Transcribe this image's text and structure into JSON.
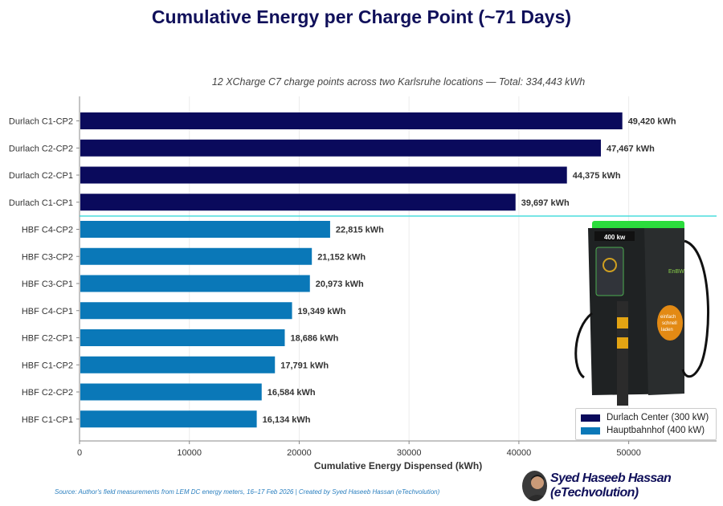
{
  "chart_data": {
    "type": "bar",
    "orientation": "horizontal",
    "title": "Cumulative Energy per Charge Point (~71 Days)",
    "subtitle": "12 XCharge C7 charge points across two Karlsruhe locations — Total: 334,443 kWh",
    "xlabel": "Cumulative Energy Dispensed (kWh)",
    "ylabel": "",
    "xlim": [
      0,
      58000
    ],
    "xticks": [
      0,
      10000,
      20000,
      30000,
      40000,
      50000
    ],
    "grid": true,
    "legend_position": "bottom-right",
    "categories": [
      "Durlach C1-CP2",
      "Durlach C2-CP2",
      "Durlach C2-CP1",
      "Durlach C1-CP1",
      "HBF C4-CP2",
      "HBF C3-CP2",
      "HBF C3-CP1",
      "HBF C4-CP1",
      "HBF C2-CP1",
      "HBF C1-CP2",
      "HBF C2-CP2",
      "HBF C1-CP1"
    ],
    "values": [
      49420,
      47467,
      44375,
      39697,
      22815,
      21152,
      20973,
      19349,
      18686,
      17791,
      16584,
      16134
    ],
    "value_labels": [
      "49,420 kWh",
      "47,467 kWh",
      "44,375 kWh",
      "39,697 kWh",
      "22,815 kWh",
      "21,152 kWh",
      "20,973 kWh",
      "19,349 kWh",
      "18,686 kWh",
      "17,791 kWh",
      "16,584 kWh",
      "16,134 kWh"
    ],
    "groups": [
      0,
      0,
      0,
      0,
      1,
      1,
      1,
      1,
      1,
      1,
      1,
      1
    ],
    "series": [
      {
        "name": "Durlach Center (300 kW)",
        "color": "#0a0a5c"
      },
      {
        "name": "Hauptbahnhof (400 kW)",
        "color": "#0a78b8"
      }
    ],
    "separator_color": "#27d8d8"
  },
  "charger_image": {
    "power_label": "400 kw",
    "brand_label": "EnBW",
    "slogan_lines": [
      "einfach",
      "schnell",
      "laden"
    ]
  },
  "footer": {
    "source": "Source: Author's field measurements from LEM DC energy meters, 16–17 Feb 2026  |  Created by Syed Haseeb Hassan (eTechvolution)",
    "author": "Syed Haseeb Hassan (eTechvolution)"
  }
}
